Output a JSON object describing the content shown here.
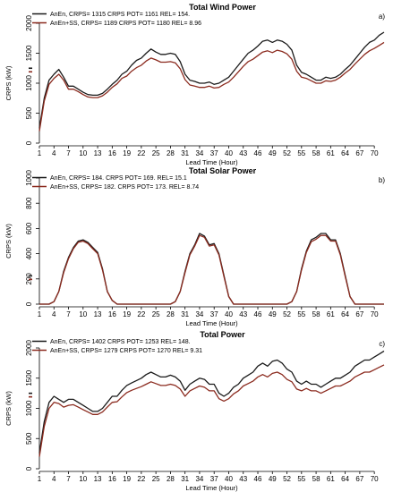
{
  "colors": {
    "anen": "#1a1a1a",
    "anen_ss": "#8b2a1e"
  },
  "chart_data": [
    {
      "type": "line",
      "panel_label": "a)",
      "title": "Total Wind Power",
      "xlabel": "Lead Time (Hour)",
      "ylabel": "CRPS (kW)",
      "x_ticks": [
        1,
        4,
        7,
        10,
        13,
        16,
        19,
        22,
        25,
        28,
        31,
        34,
        37,
        40,
        43,
        46,
        49,
        52,
        55,
        58,
        61,
        64,
        67,
        70
      ],
      "xlim": [
        1,
        72
      ],
      "y_ticks": [
        0,
        500,
        1000,
        1500,
        2000
      ],
      "ylim": [
        0,
        2000
      ],
      "legend": [
        "AnEn, CRPS= 1315  CRPS POT= 1161  REL= 154.",
        "AnEn+SS,  CRPS= 1189  CRPS POT= 1180  REL= 8.96"
      ],
      "legend_position": "top-left",
      "series": [
        {
          "name": "AnEn",
          "color": "#1a1a1a",
          "x": [
            1,
            2,
            3,
            4,
            5,
            6,
            7,
            8,
            9,
            10,
            11,
            12,
            13,
            14,
            15,
            16,
            17,
            18,
            19,
            20,
            21,
            22,
            23,
            24,
            25,
            26,
            27,
            28,
            29,
            30,
            31,
            32,
            33,
            34,
            35,
            36,
            37,
            38,
            39,
            40,
            41,
            42,
            43,
            44,
            45,
            46,
            47,
            48,
            49,
            50,
            51,
            52,
            53,
            54,
            55,
            56,
            57,
            58,
            59,
            60,
            61,
            62,
            63,
            64,
            65,
            66,
            67,
            68,
            69,
            70,
            71,
            72
          ],
          "values": [
            250,
            750,
            1050,
            1150,
            1230,
            1100,
            950,
            950,
            900,
            850,
            810,
            800,
            800,
            830,
            900,
            980,
            1050,
            1150,
            1200,
            1300,
            1380,
            1420,
            1500,
            1570,
            1520,
            1480,
            1480,
            1500,
            1480,
            1360,
            1150,
            1050,
            1030,
            1000,
            1000,
            1020,
            980,
            1000,
            1050,
            1100,
            1200,
            1300,
            1400,
            1500,
            1550,
            1620,
            1700,
            1720,
            1680,
            1720,
            1700,
            1650,
            1550,
            1300,
            1180,
            1150,
            1100,
            1050,
            1050,
            1100,
            1080,
            1100,
            1150,
            1230,
            1300,
            1400,
            1500,
            1600,
            1680,
            1720,
            1800,
            1850
          ]
        },
        {
          "name": "AnEn+SS",
          "color": "#8b2a1e",
          "x": [
            1,
            2,
            3,
            4,
            5,
            6,
            7,
            8,
            9,
            10,
            11,
            12,
            13,
            14,
            15,
            16,
            17,
            18,
            19,
            20,
            21,
            22,
            23,
            24,
            25,
            26,
            27,
            28,
            29,
            30,
            31,
            32,
            33,
            34,
            35,
            36,
            37,
            38,
            39,
            40,
            41,
            42,
            43,
            44,
            45,
            46,
            47,
            48,
            49,
            50,
            51,
            52,
            53,
            54,
            55,
            56,
            57,
            58,
            59,
            60,
            61,
            62,
            63,
            64,
            65,
            66,
            67,
            68,
            69,
            70,
            71,
            72
          ],
          "values": [
            200,
            700,
            980,
            1080,
            1150,
            1050,
            900,
            900,
            860,
            810,
            770,
            760,
            760,
            790,
            850,
            930,
            990,
            1080,
            1120,
            1200,
            1260,
            1300,
            1370,
            1420,
            1390,
            1350,
            1350,
            1360,
            1340,
            1240,
            1060,
            970,
            950,
            930,
            930,
            950,
            920,
            930,
            980,
            1020,
            1100,
            1190,
            1280,
            1360,
            1400,
            1460,
            1520,
            1540,
            1510,
            1550,
            1530,
            1490,
            1400,
            1200,
            1100,
            1080,
            1040,
            1000,
            1000,
            1040,
            1030,
            1050,
            1100,
            1170,
            1230,
            1320,
            1400,
            1480,
            1540,
            1580,
            1630,
            1680
          ]
        }
      ]
    },
    {
      "type": "line",
      "panel_label": "b)",
      "title": "Total Solar Power",
      "xlabel": "Lead Time (Hour)",
      "ylabel": "CRPS (kW)",
      "x_ticks": [
        1,
        4,
        7,
        10,
        13,
        16,
        19,
        22,
        25,
        28,
        31,
        34,
        37,
        40,
        43,
        46,
        49,
        52,
        55,
        58,
        61,
        64,
        67,
        70
      ],
      "xlim": [
        1,
        72
      ],
      "y_ticks": [
        0,
        200,
        400,
        600,
        800,
        1000
      ],
      "ylim": [
        0,
        1000
      ],
      "legend": [
        "AnEn, CRPS= 184.  CRPS POT= 169.  REL= 15.1",
        "AnEn+SS,  CRPS= 182.  CRPS POT= 173.  REL= 8.74"
      ],
      "legend_position": "top-left",
      "series": [
        {
          "name": "AnEn",
          "color": "#1a1a1a",
          "x": [
            1,
            2,
            3,
            4,
            5,
            6,
            7,
            8,
            9,
            10,
            11,
            12,
            13,
            14,
            15,
            16,
            17,
            18,
            19,
            20,
            21,
            22,
            23,
            24,
            25,
            26,
            27,
            28,
            29,
            30,
            31,
            32,
            33,
            34,
            35,
            36,
            37,
            38,
            39,
            40,
            41,
            42,
            43,
            44,
            45,
            46,
            47,
            48,
            49,
            50,
            51,
            52,
            53,
            54,
            55,
            56,
            57,
            58,
            59,
            60,
            61,
            62,
            63,
            64,
            65,
            66,
            67,
            68,
            69,
            70,
            71,
            72
          ],
          "values": [
            0,
            0,
            0,
            20,
            100,
            260,
            370,
            450,
            500,
            510,
            490,
            450,
            410,
            280,
            100,
            30,
            0,
            0,
            0,
            0,
            0,
            0,
            0,
            0,
            0,
            0,
            0,
            0,
            20,
            100,
            260,
            400,
            470,
            560,
            540,
            470,
            480,
            400,
            230,
            60,
            0,
            0,
            0,
            0,
            0,
            0,
            0,
            0,
            0,
            0,
            0,
            0,
            20,
            100,
            280,
            420,
            510,
            530,
            560,
            560,
            510,
            510,
            400,
            230,
            60,
            0,
            0,
            0,
            0,
            0,
            0,
            0
          ]
        },
        {
          "name": "AnEn+SS",
          "color": "#8b2a1e",
          "x": [
            1,
            2,
            3,
            4,
            5,
            6,
            7,
            8,
            9,
            10,
            11,
            12,
            13,
            14,
            15,
            16,
            17,
            18,
            19,
            20,
            21,
            22,
            23,
            24,
            25,
            26,
            27,
            28,
            29,
            30,
            31,
            32,
            33,
            34,
            35,
            36,
            37,
            38,
            39,
            40,
            41,
            42,
            43,
            44,
            45,
            46,
            47,
            48,
            49,
            50,
            51,
            52,
            53,
            54,
            55,
            56,
            57,
            58,
            59,
            60,
            61,
            62,
            63,
            64,
            65,
            66,
            67,
            68,
            69,
            70,
            71,
            72
          ],
          "values": [
            0,
            0,
            0,
            20,
            100,
            250,
            360,
            440,
            490,
            500,
            480,
            440,
            400,
            270,
            100,
            30,
            0,
            0,
            0,
            0,
            0,
            0,
            0,
            0,
            0,
            0,
            0,
            0,
            20,
            100,
            250,
            390,
            460,
            545,
            530,
            460,
            470,
            390,
            220,
            60,
            0,
            0,
            0,
            0,
            0,
            0,
            0,
            0,
            0,
            0,
            0,
            0,
            20,
            100,
            270,
            410,
            495,
            515,
            545,
            545,
            500,
            500,
            390,
            220,
            60,
            0,
            0,
            0,
            0,
            0,
            0,
            0
          ]
        }
      ]
    },
    {
      "type": "line",
      "panel_label": "c)",
      "title": "Total Power",
      "xlabel": "Lead Time (Hour)",
      "ylabel": "CRPS (kW)",
      "x_ticks": [
        1,
        4,
        7,
        10,
        13,
        16,
        19,
        22,
        25,
        28,
        31,
        34,
        37,
        40,
        43,
        46,
        49,
        52,
        55,
        58,
        61,
        64,
        67,
        70
      ],
      "xlim": [
        1,
        72
      ],
      "y_ticks": [
        0,
        500,
        1000,
        1500,
        2000
      ],
      "ylim": [
        0,
        2000
      ],
      "legend": [
        "AnEn, CRPS= 1402  CRPS POT= 1253  REL= 148.",
        "AnEn+SS,  CRPS= 1279  CRPS POT= 1270  REL= 9.31"
      ],
      "legend_position": "top-left",
      "series": [
        {
          "name": "AnEn",
          "color": "#1a1a1a",
          "x": [
            1,
            2,
            3,
            4,
            5,
            6,
            7,
            8,
            9,
            10,
            11,
            12,
            13,
            14,
            15,
            16,
            17,
            18,
            19,
            20,
            21,
            22,
            23,
            24,
            25,
            26,
            27,
            28,
            29,
            30,
            31,
            32,
            33,
            34,
            35,
            36,
            37,
            38,
            39,
            40,
            41,
            42,
            43,
            44,
            45,
            46,
            47,
            48,
            49,
            50,
            51,
            52,
            53,
            54,
            55,
            56,
            57,
            58,
            59,
            60,
            61,
            62,
            63,
            64,
            65,
            66,
            67,
            68,
            69,
            70,
            71,
            72
          ],
          "values": [
            260,
            780,
            1100,
            1200,
            1150,
            1100,
            1150,
            1150,
            1100,
            1050,
            1000,
            950,
            950,
            1000,
            1100,
            1200,
            1200,
            1300,
            1380,
            1420,
            1460,
            1500,
            1560,
            1600,
            1560,
            1520,
            1520,
            1550,
            1520,
            1450,
            1300,
            1400,
            1450,
            1500,
            1480,
            1400,
            1400,
            1250,
            1200,
            1250,
            1350,
            1400,
            1500,
            1550,
            1600,
            1700,
            1750,
            1700,
            1780,
            1800,
            1750,
            1650,
            1600,
            1450,
            1400,
            1450,
            1400,
            1400,
            1350,
            1400,
            1450,
            1500,
            1500,
            1550,
            1600,
            1700,
            1750,
            1800,
            1800,
            1850,
            1900,
            1950
          ]
        },
        {
          "name": "AnEn+SS",
          "color": "#8b2a1e",
          "x": [
            1,
            2,
            3,
            4,
            5,
            6,
            7,
            8,
            9,
            10,
            11,
            12,
            13,
            14,
            15,
            16,
            17,
            18,
            19,
            20,
            21,
            22,
            23,
            24,
            25,
            26,
            27,
            28,
            29,
            30,
            31,
            32,
            33,
            34,
            35,
            36,
            37,
            38,
            39,
            40,
            41,
            42,
            43,
            44,
            45,
            46,
            47,
            48,
            49,
            50,
            51,
            52,
            53,
            54,
            55,
            56,
            57,
            58,
            59,
            60,
            61,
            62,
            63,
            64,
            65,
            66,
            67,
            68,
            69,
            70,
            71,
            72
          ],
          "values": [
            200,
            700,
            1000,
            1100,
            1080,
            1020,
            1050,
            1060,
            1020,
            980,
            940,
            900,
            900,
            940,
            1020,
            1100,
            1110,
            1190,
            1260,
            1300,
            1330,
            1360,
            1400,
            1440,
            1410,
            1380,
            1380,
            1400,
            1380,
            1320,
            1200,
            1290,
            1330,
            1370,
            1350,
            1290,
            1290,
            1160,
            1120,
            1160,
            1240,
            1290,
            1370,
            1410,
            1450,
            1520,
            1560,
            1520,
            1580,
            1600,
            1560,
            1480,
            1440,
            1320,
            1290,
            1330,
            1290,
            1290,
            1250,
            1290,
            1330,
            1370,
            1370,
            1410,
            1450,
            1520,
            1560,
            1600,
            1600,
            1640,
            1680,
            1720
          ]
        }
      ]
    }
  ]
}
